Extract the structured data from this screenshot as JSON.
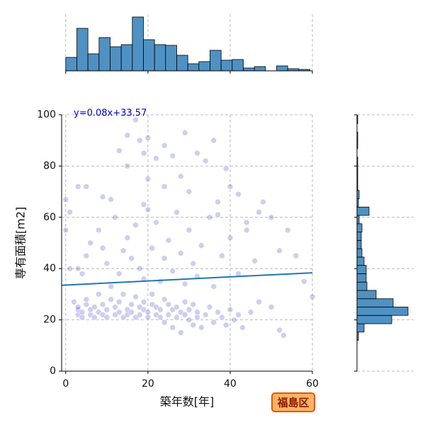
{
  "chart_data": [
    {
      "type": "histogram",
      "orientation": "vertical",
      "color": "#4f91c3",
      "bins": [
        0,
        2.7,
        5.4,
        8.1,
        10.8,
        13.5,
        16.2,
        18.9,
        21.6,
        24.3,
        27,
        29.7,
        32.4,
        35.1,
        37.8,
        40.5,
        43.2,
        45.9,
        48.6,
        51.3,
        54,
        56.7,
        59.4
      ],
      "counts": [
        19,
        60,
        24,
        47,
        34,
        37,
        76,
        44,
        37,
        36,
        22,
        10,
        13,
        29,
        15,
        16,
        4,
        6,
        0,
        7,
        3,
        2
      ],
      "xlim": [
        -1,
        60
      ],
      "xticks": [
        0,
        20,
        40,
        60
      ],
      "ylim": [
        0,
        80
      ],
      "grid": true
    },
    {
      "type": "scatter",
      "color": "#2222bb",
      "xlabel": "築年数[年]",
      "ylabel": "専有面積[m2]",
      "annotation": "y=0.08x+33.57",
      "trend_line": {
        "slope": 0.08,
        "intercept": 33.57,
        "color": "#1f77b4"
      },
      "badge": "福島区",
      "x": [
        3,
        3,
        3,
        4,
        4,
        5,
        5,
        6,
        6,
        7,
        7,
        8,
        8,
        9,
        9,
        10,
        10,
        11,
        11,
        12,
        12,
        13,
        13,
        14,
        14,
        15,
        15,
        16,
        16,
        17,
        17,
        18,
        18,
        19,
        19,
        20,
        20,
        21,
        21,
        22,
        22,
        23,
        23,
        24,
        24,
        25,
        25,
        26,
        26,
        27,
        27,
        28,
        28,
        29,
        29,
        30,
        30,
        31,
        31,
        32,
        32,
        33,
        34,
        35,
        36,
        37,
        38,
        39,
        40,
        41,
        42,
        43,
        45,
        47,
        50,
        52,
        53,
        1,
        3,
        4,
        5,
        6,
        8,
        9,
        10,
        12,
        13,
        14,
        15,
        16,
        17,
        18,
        19,
        20,
        21,
        22,
        23,
        24,
        25,
        26,
        27,
        28,
        29,
        30,
        31,
        32,
        33,
        35,
        36,
        37,
        38,
        40,
        42,
        44,
        46,
        48,
        50,
        52,
        54,
        56,
        58,
        60,
        1,
        2,
        0,
        0,
        3,
        5,
        9,
        13,
        15,
        17,
        18,
        19,
        20,
        22,
        24,
        26,
        29,
        32,
        34,
        36,
        39,
        40,
        42,
        37,
        28,
        20,
        15,
        11,
        30,
        24,
        19,
        44,
        47
      ],
      "y": [
        22,
        24,
        25,
        21,
        23,
        26,
        28,
        22,
        24,
        25,
        21,
        23,
        30,
        22,
        26,
        24,
        21,
        28,
        33,
        22,
        25,
        23,
        27,
        21,
        30,
        24,
        22,
        26,
        23,
        21,
        29,
        25,
        22,
        24,
        27,
        23,
        21,
        26,
        30,
        22,
        25,
        24,
        21,
        28,
        19,
        22,
        26,
        24,
        17,
        21,
        25,
        23,
        15,
        22,
        27,
        20,
        24,
        18,
        26,
        21,
        23,
        17,
        22,
        25,
        19,
        23,
        21,
        18,
        24,
        20,
        22,
        17,
        23,
        27,
        25,
        16,
        14,
        62,
        40,
        38,
        45,
        50,
        55,
        48,
        42,
        60,
        38,
        47,
        52,
        44,
        57,
        40,
        36,
        63,
        48,
        58,
        35,
        44,
        51,
        39,
        62,
        46,
        34,
        55,
        42,
        37,
        49,
        60,
        33,
        61,
        45,
        52,
        38,
        55,
        43,
        66,
        60,
        47,
        55,
        45,
        35,
        29,
        40,
        27,
        55,
        67,
        72,
        72,
        68,
        86,
        92,
        98,
        90,
        85,
        91,
        83,
        88,
        84,
        93,
        85,
        82,
        90,
        79,
        72,
        69,
        66,
        76,
        75,
        80,
        67,
        70,
        72,
        65,
        58,
        62
      ],
      "xlim": [
        -1,
        60
      ],
      "xticks": [
        0,
        20,
        40,
        60
      ],
      "ylim": [
        0,
        100
      ],
      "yticks": [
        0,
        20,
        40,
        60,
        80,
        100
      ],
      "grid": true
    },
    {
      "type": "histogram",
      "orientation": "horizontal",
      "color": "#4f91c3",
      "bins": [
        12,
        15.25,
        18.5,
        21.75,
        25,
        28.25,
        31.5,
        34.75,
        38,
        41.25,
        44.5,
        47.75,
        51,
        54.25,
        57.5,
        60.75,
        64,
        67.25,
        70.5,
        73.75,
        77,
        80.25,
        83.5,
        86.75,
        90,
        93.25,
        96.5,
        99.75
      ],
      "counts": [
        2,
        10,
        49,
        72,
        51,
        27,
        14,
        13,
        13,
        10,
        7,
        6,
        6,
        7,
        3,
        17,
        2,
        3,
        1,
        1,
        1,
        1,
        0,
        1,
        1,
        0,
        1
      ],
      "xlim": [
        0,
        80
      ],
      "ylim": [
        0,
        100
      ],
      "yticks": [
        0,
        20,
        40,
        60,
        80,
        100
      ],
      "grid": true
    }
  ]
}
